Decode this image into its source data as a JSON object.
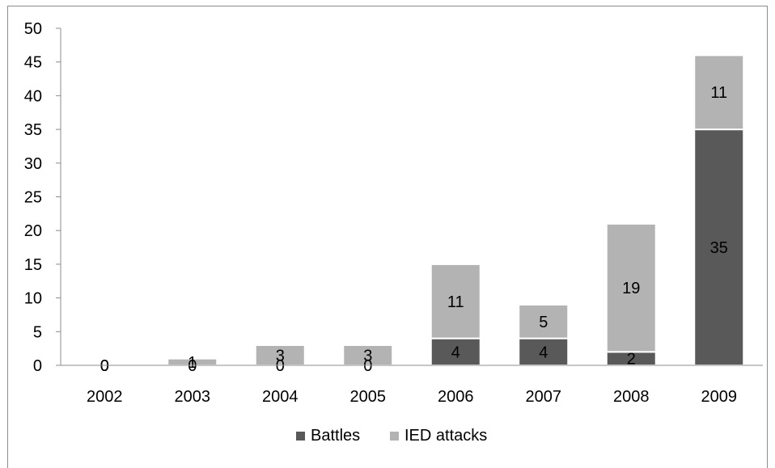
{
  "chart_data": {
    "type": "bar",
    "stacked": true,
    "categories": [
      "2002",
      "2003",
      "2004",
      "2005",
      "2006",
      "2007",
      "2008",
      "2009"
    ],
    "series": [
      {
        "name": "Battles",
        "values": [
          0,
          0,
          0,
          0,
          4,
          4,
          2,
          35
        ],
        "color": "#595959"
      },
      {
        "name": "IED attacks",
        "values": [
          0,
          1,
          3,
          3,
          11,
          5,
          19,
          11
        ],
        "color": "#b3b3b3"
      }
    ],
    "ylim": [
      0,
      50
    ],
    "yticks": [
      0,
      5,
      10,
      15,
      20,
      25,
      30,
      35,
      40,
      45,
      50
    ],
    "title": "",
    "xlabel": "",
    "ylabel": "",
    "grid": false,
    "legend_position": "bottom",
    "data_labels": true
  }
}
